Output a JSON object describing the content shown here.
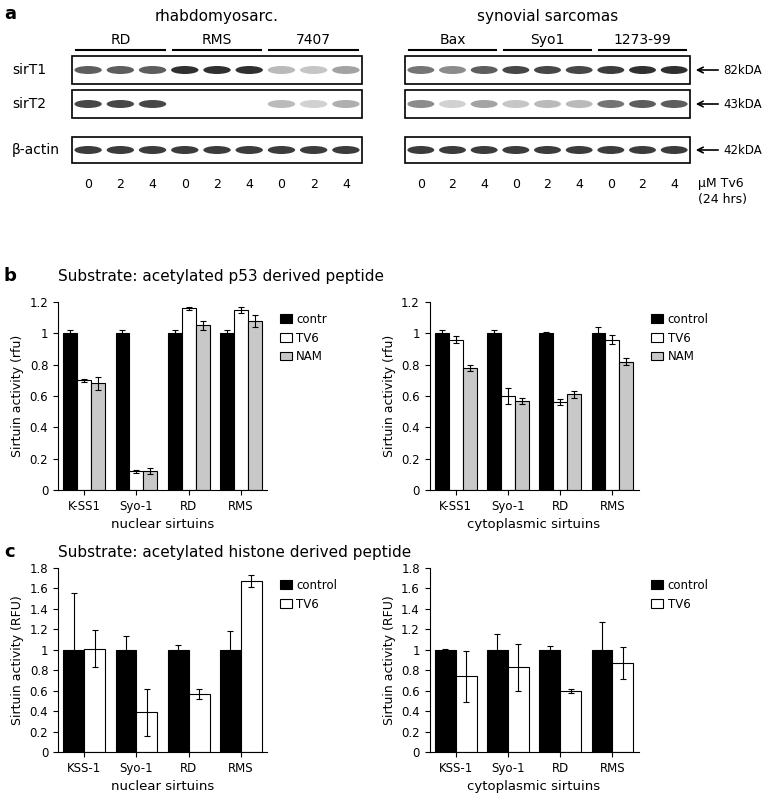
{
  "blot": {
    "label": "a",
    "groups": [
      {
        "name": "rhabdomyosarc.",
        "cell_lines": [
          "RD",
          "RMS",
          "7407"
        ]
      },
      {
        "name": "synovial sarcomas",
        "cell_lines": [
          "Bax",
          "Syo1",
          "1273-99"
        ]
      }
    ],
    "doses": [
      0,
      2,
      4
    ],
    "dose_unit": "μM Tv6",
    "treatment_time": "(24 hrs)",
    "rows": [
      {
        "name": "sirT1",
        "size": "82kDA",
        "band_intensity": [
          0.7,
          0.7,
          0.7,
          0.9,
          0.9,
          0.9,
          0.3,
          0.25,
          0.4,
          0.6,
          0.5,
          0.7,
          0.8,
          0.8,
          0.8,
          0.85,
          0.9,
          0.9
        ]
      },
      {
        "name": "sirT2",
        "size": "43kDA",
        "band_intensity": [
          0.8,
          0.8,
          0.8,
          0,
          0,
          0,
          0.3,
          0.2,
          0.35,
          0.5,
          0.2,
          0.4,
          0.25,
          0.3,
          0.3,
          0.6,
          0.7,
          0.7
        ]
      },
      {
        "name": "β-actin",
        "size": "42kDA",
        "band_intensity": [
          0.85,
          0.85,
          0.85,
          0.85,
          0.85,
          0.85,
          0.85,
          0.85,
          0.85,
          0.85,
          0.85,
          0.85,
          0.85,
          0.85,
          0.85,
          0.85,
          0.85,
          0.85
        ]
      }
    ]
  },
  "sections": [
    {
      "label": "b",
      "title": "Substrate: acetylated p53 derived peptide"
    },
    {
      "label": "c",
      "title": "Substrate: acetylated histone derived peptide"
    }
  ],
  "chart_data": [
    {
      "type": "bar",
      "xlabel": "nuclear sirtuins",
      "ylabel": "Sirtuin activity (rfu)",
      "categories": [
        "K-SS1",
        "Syo-1",
        "RD",
        "RMS"
      ],
      "ylim": [
        0,
        1.2
      ],
      "yticks": [
        0,
        0.2,
        0.4,
        0.6,
        0.8,
        1,
        1.2
      ],
      "legend": "right",
      "series": [
        {
          "name": "contr",
          "color": "#000000",
          "values": [
            1,
            1,
            1,
            1
          ],
          "errors": [
            0.02,
            0.02,
            0.02,
            0.02
          ]
        },
        {
          "name": "TV6",
          "color": "#ffffff",
          "values": [
            0.7,
            0.12,
            1.16,
            1.15
          ],
          "errors": [
            0.01,
            0.01,
            0.01,
            0.02
          ]
        },
        {
          "name": "NAM",
          "color": "#c8c8c8",
          "values": [
            0.68,
            0.12,
            1.05,
            1.08
          ],
          "errors": [
            0.04,
            0.02,
            0.03,
            0.04
          ]
        }
      ]
    },
    {
      "type": "bar",
      "xlabel": "cytoplasmic sirtuins",
      "ylabel": "Sirtuin activity (rfu)",
      "categories": [
        "K-SS1",
        "Syo-1",
        "RD",
        "RMS"
      ],
      "ylim": [
        0,
        1.2
      ],
      "yticks": [
        0,
        0.2,
        0.4,
        0.6,
        0.8,
        1,
        1.2
      ],
      "legend": "right",
      "series": [
        {
          "name": "control",
          "color": "#000000",
          "values": [
            1,
            1,
            1,
            1
          ],
          "errors": [
            0.02,
            0.02,
            0.01,
            0.04
          ]
        },
        {
          "name": "TV6",
          "color": "#ffffff",
          "values": [
            0.96,
            0.6,
            0.56,
            0.96
          ],
          "errors": [
            0.02,
            0.05,
            0.02,
            0.03
          ]
        },
        {
          "name": "NAM",
          "color": "#c8c8c8",
          "values": [
            0.78,
            0.57,
            0.61,
            0.82
          ],
          "errors": [
            0.02,
            0.02,
            0.02,
            0.02
          ]
        }
      ]
    },
    {
      "type": "bar",
      "xlabel": "nuclear sirtuins",
      "ylabel": "Sirtuin activity (RFU)",
      "categories": [
        "KSS-1",
        "Syo-1",
        "RD",
        "RMS"
      ],
      "ylim": [
        0,
        1.8
      ],
      "yticks": [
        0,
        0.2,
        0.4,
        0.6,
        0.8,
        1,
        1.2,
        1.4,
        1.6,
        1.8
      ],
      "legend": "right",
      "series": [
        {
          "name": "control",
          "color": "#000000",
          "values": [
            1,
            1,
            1,
            1
          ],
          "errors": [
            0.56,
            0.13,
            0.05,
            0.18
          ]
        },
        {
          "name": "TV6",
          "color": "#ffffff",
          "values": [
            1.01,
            0.39,
            0.57,
            1.67
          ],
          "errors": [
            0.18,
            0.23,
            0.05,
            0.06
          ]
        }
      ]
    },
    {
      "type": "bar",
      "xlabel": "cytoplasmic sirtuins",
      "ylabel": "Sirtuin activity (RFU)",
      "categories": [
        "KSS-1",
        "Syo-1",
        "RD",
        "RMS"
      ],
      "ylim": [
        0,
        1.8
      ],
      "yticks": [
        0,
        0.2,
        0.4,
        0.6,
        0.8,
        1,
        1.2,
        1.4,
        1.6,
        1.8
      ],
      "legend": "right",
      "series": [
        {
          "name": "control",
          "color": "#000000",
          "values": [
            1,
            1,
            1,
            1
          ],
          "errors": [
            0.01,
            0.15,
            0.04,
            0.27
          ]
        },
        {
          "name": "TV6",
          "color": "#ffffff",
          "values": [
            0.74,
            0.83,
            0.6,
            0.87
          ],
          "errors": [
            0.25,
            0.23,
            0.02,
            0.16
          ]
        }
      ]
    }
  ]
}
